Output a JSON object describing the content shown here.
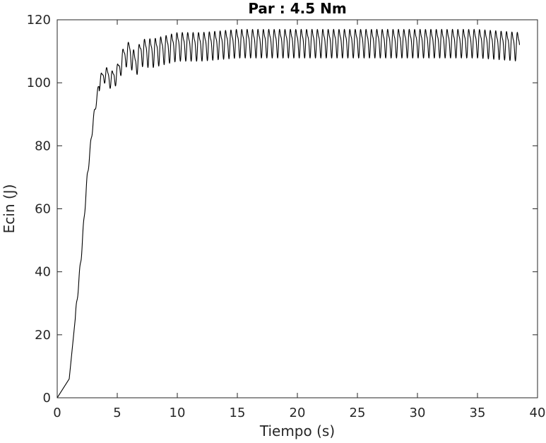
{
  "chart_data": {
    "type": "line",
    "title": "Par : 4.5 Nm",
    "xlabel": "Tiempo (s)",
    "ylabel": "Ecin (J)",
    "xlim": [
      0,
      40
    ],
    "ylim": [
      0,
      120
    ],
    "xticks": [
      0,
      5,
      10,
      15,
      20,
      25,
      30,
      35,
      40
    ],
    "yticks": [
      0,
      20,
      40,
      60,
      80,
      100,
      120
    ],
    "grid": false,
    "line_color": "#000000",
    "series": [
      {
        "x": [
          0,
          0.5,
          1,
          1.5,
          2,
          2.5,
          3,
          3.5,
          4,
          4.5,
          5,
          5.5,
          6,
          6.5,
          7,
          8,
          9,
          10,
          12,
          15,
          20,
          25,
          30,
          35,
          38.5
        ],
        "y": [
          0,
          3,
          6,
          25,
          45,
          70,
          88,
          100,
          103,
          101,
          103,
          108,
          110,
          106,
          110,
          110,
          111,
          112,
          112,
          113,
          113,
          113,
          113,
          113,
          112
        ]
      }
    ],
    "oscillation": {
      "start_x": 3.5,
      "amplitude": 4,
      "period": 0.45
    }
  }
}
